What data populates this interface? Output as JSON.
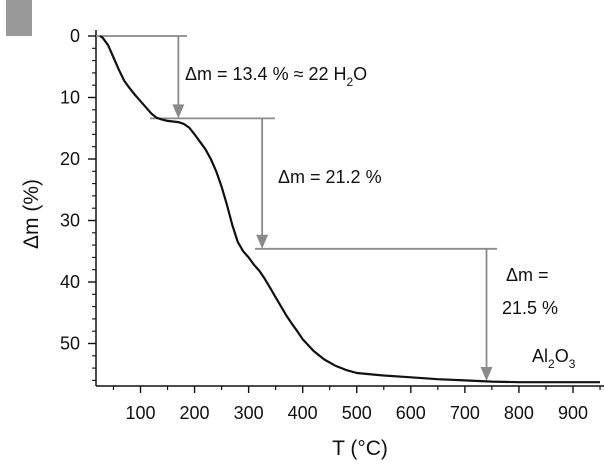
{
  "panel_marker": {
    "color": "#999999"
  },
  "chart_data": {
    "type": "line",
    "title": "",
    "xlabel": "T (°C)",
    "ylabel": "Δm (%)",
    "xlim": [
      20,
      950
    ],
    "ylim": [
      0,
      57
    ],
    "y_inverted": true,
    "x_ticks": [
      100,
      200,
      300,
      400,
      500,
      600,
      700,
      800,
      900
    ],
    "y_ticks": [
      0,
      10,
      20,
      30,
      40,
      50
    ],
    "grid": false,
    "colors": {
      "curve": "#111111",
      "annotation": "#8a8a8a",
      "axis": "#111111"
    },
    "series": [
      {
        "x": [
          25,
          30,
          40,
          50,
          60,
          70,
          80,
          90,
          100,
          110,
          120,
          130,
          140,
          150,
          160,
          170,
          180,
          190,
          200,
          210,
          220,
          230,
          240,
          250,
          260,
          270,
          280,
          290,
          300,
          310,
          320,
          330,
          340,
          350,
          360,
          370,
          380,
          390,
          400,
          420,
          440,
          460,
          480,
          500,
          550,
          600,
          650,
          700,
          750,
          800,
          850,
          900,
          950
        ],
        "y": [
          0,
          0.3,
          1.5,
          3.5,
          5.5,
          7.3,
          8.5,
          9.6,
          10.6,
          11.6,
          12.6,
          13.3,
          13.6,
          13.8,
          13.9,
          14.0,
          14.3,
          14.9,
          16.0,
          17.2,
          18.4,
          20.0,
          22.0,
          24.5,
          27.5,
          30.8,
          33.5,
          35.0,
          36.0,
          37.2,
          38.2,
          39.5,
          41.0,
          42.5,
          44.0,
          45.5,
          46.8,
          48.0,
          49.3,
          51.2,
          52.6,
          53.6,
          54.3,
          54.8,
          55.2,
          55.5,
          55.8,
          56.0,
          56.2,
          56.3,
          56.3,
          56.3,
          56.3
        ]
      }
    ],
    "steps": [
      {
        "x": 170,
        "from": 0,
        "to": 13.4,
        "label": "Δm = 13.4 % ≈ 22 H",
        "sub": "2",
        "tail": "O"
      },
      {
        "x": 325,
        "from": 13.4,
        "to": 34.6,
        "label": "Δm = 21.2 %"
      },
      {
        "x": 740,
        "from": 34.6,
        "to": 56.1,
        "label_line1": "Δm =",
        "label_line2": "21.5 %"
      }
    ],
    "annotations": [
      {
        "x": 900,
        "y": 53,
        "text": "Al",
        "sub1": "2",
        "mid": "O",
        "sub2": "3"
      }
    ]
  }
}
